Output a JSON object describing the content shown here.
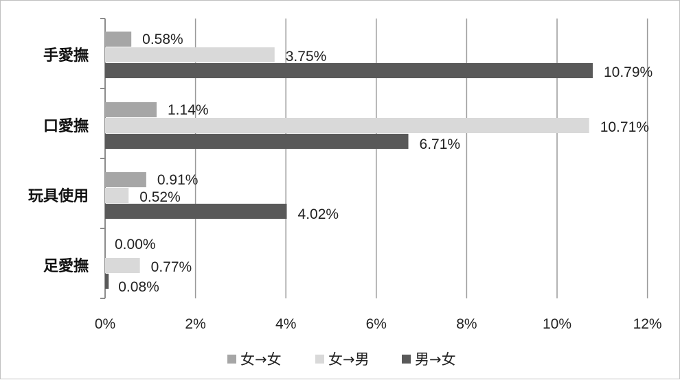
{
  "chart_data": {
    "type": "bar",
    "orientation": "horizontal",
    "categories": [
      "手愛撫",
      "口愛撫",
      "玩具使用",
      "足愛撫"
    ],
    "series": [
      {
        "name": "女→女",
        "color": "#a6a6a6",
        "values": [
          0.58,
          1.14,
          0.91,
          0.0
        ],
        "labels": [
          "0.58%",
          "1.14%",
          "0.91%",
          "0.00%"
        ]
      },
      {
        "name": "女→男",
        "color": "#d9d9d9",
        "values": [
          3.75,
          10.71,
          0.52,
          0.77
        ],
        "labels": [
          "3.75%",
          "10.71%",
          "0.52%",
          "0.77%"
        ]
      },
      {
        "name": "男→女",
        "color": "#595959",
        "values": [
          10.79,
          6.71,
          4.02,
          0.08
        ],
        "labels": [
          "10.79%",
          "6.71%",
          "4.02%",
          "0.08%"
        ]
      }
    ],
    "x_ticks": [
      "0%",
      "2%",
      "4%",
      "6%",
      "8%",
      "10%",
      "12%"
    ],
    "xlim": [
      0,
      12
    ],
    "grid": "vertical",
    "legend_position": "bottom"
  }
}
